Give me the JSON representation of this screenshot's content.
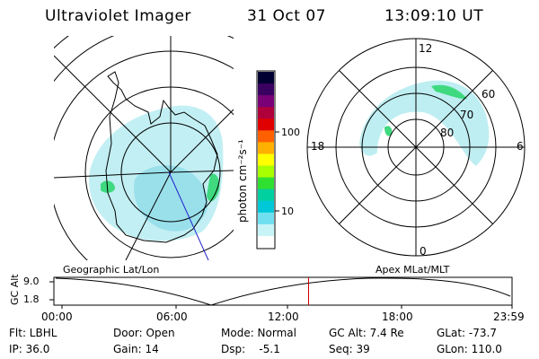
{
  "header": {
    "instrument": "Ultraviolet Imager",
    "date": "31 Oct 07",
    "time": "13:09:10 UT"
  },
  "colorbar": {
    "unit_label": "photon cm⁻²s⁻¹",
    "ticks": [
      "100",
      "10"
    ],
    "colors": [
      "#000033",
      "#3a0060",
      "#7a0078",
      "#b0003c",
      "#e00000",
      "#ff6000",
      "#ffb000",
      "#ffff00",
      "#a8ff00",
      "#30e030",
      "#00d0a0",
      "#00c8d8",
      "#70e0f0",
      "#c8f4f8",
      "#ffffff"
    ]
  },
  "left_panel": {
    "caption": "Geographic Lat/Lon",
    "aurora_color": "#9fe4ec",
    "hot_color": "#37d66b"
  },
  "right_panel": {
    "caption": "Apex MLat/MLT",
    "mlt_labels": {
      "top": "12",
      "left": "18",
      "right": "6",
      "bottom": "0"
    },
    "mlat_labels": [
      "60",
      "70",
      "80"
    ]
  },
  "altitude_plot": {
    "ylabel": "GC Alt",
    "yticks": [
      "9.0",
      "1.8"
    ],
    "xticks": [
      "00:00",
      "06:00",
      "12:00",
      "18:00",
      "23:59"
    ],
    "marker_color": "#cc0000",
    "marker_time_hours": 13.15
  },
  "status": {
    "row1": [
      {
        "label": "Flt: LBHL"
      },
      {
        "label": "Door: Open"
      },
      {
        "label": "Mode: Normal"
      },
      {
        "label": "GC Alt: 7.4 Re"
      },
      {
        "label": "GLat: -73.7"
      }
    ],
    "row2": [
      {
        "label": "IP: 36.0"
      },
      {
        "label": "Gain: 14"
      },
      {
        "label": "Dsp:    -5.1"
      },
      {
        "label": "Seq: 39"
      },
      {
        "label": "GLon: 110.0"
      }
    ]
  }
}
